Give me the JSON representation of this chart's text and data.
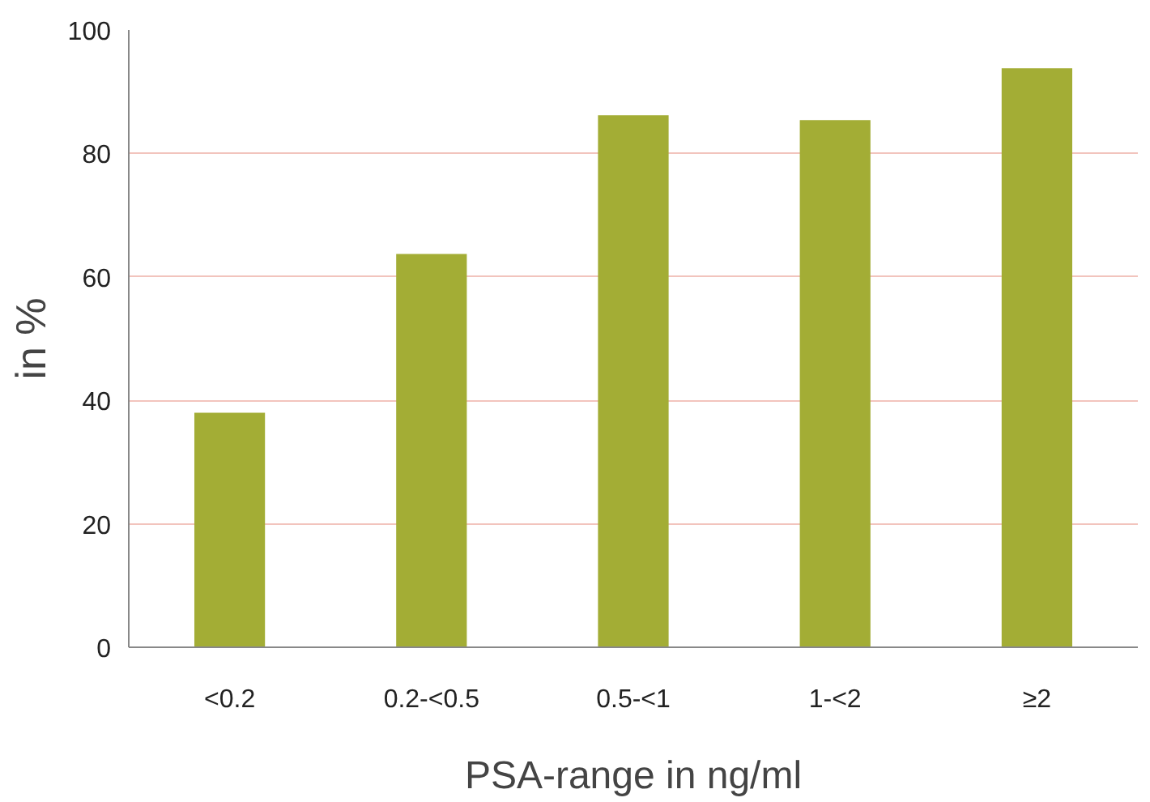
{
  "chart_data": {
    "type": "bar",
    "xlabel": "PSA-range in ng/ml",
    "ylabel": "in %",
    "categories": [
      "<0.2",
      "0.2-<0.5",
      "0.5-<1",
      "1-<2",
      "≥2"
    ],
    "values": [
      38,
      63.7,
      86.2,
      85.4,
      93.8
    ],
    "color": "#a3ad35",
    "ylim": [
      0,
      100
    ],
    "yticks": [
      0,
      20,
      40,
      60,
      80,
      100
    ],
    "grid": "y"
  }
}
